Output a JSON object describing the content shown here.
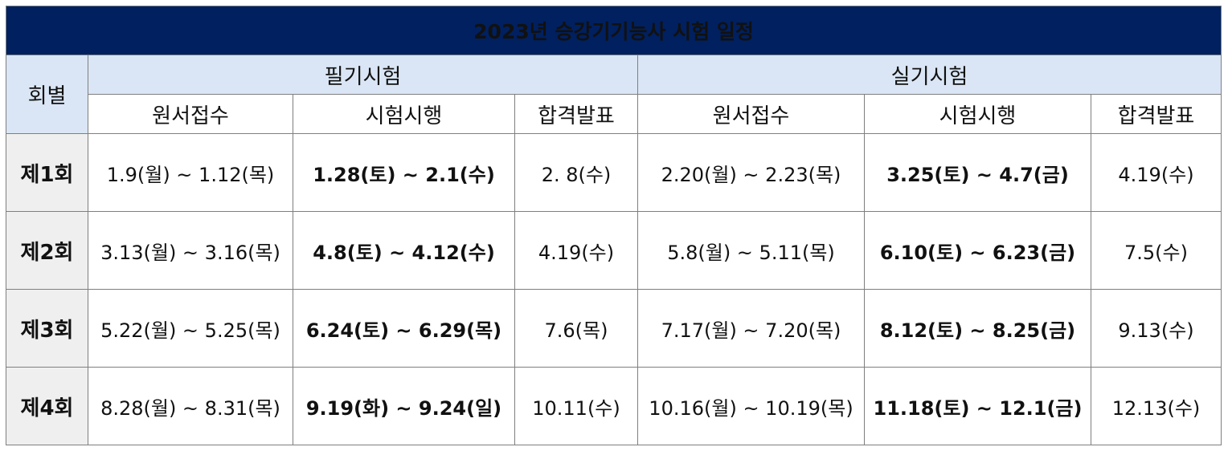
{
  "title": "2023년 승강기기능사 시험 일정",
  "headers": {
    "round": "회별",
    "written": "필기시험",
    "practical": "실기시험",
    "application": "원서접수",
    "exam": "시험시행",
    "result": "합격발표"
  },
  "colors": {
    "title_bg": "#002060",
    "header_bg": "#dae6f5",
    "exam_text": "#1e6fc0",
    "round_bg": "#efefef"
  },
  "rows": [
    {
      "round": "제1회",
      "written": {
        "application": "1.9(월)  ~  1.12(목)",
        "exam": "1.28(토)  ~  2.1(수)",
        "result": "2.  8(수)"
      },
      "practical": {
        "application": "2.20(월)  ~  2.23(목)",
        "exam": "3.25(토)  ~  4.7(금)",
        "result": "4.19(수)"
      }
    },
    {
      "round": "제2회",
      "written": {
        "application": "3.13(월)  ~  3.16(목)",
        "exam": "4.8(토)  ~  4.12(수)",
        "result": "4.19(수)"
      },
      "practical": {
        "application": "5.8(월)  ~  5.11(목)",
        "exam": "6.10(토)  ~  6.23(금)",
        "result": "7.5(수)"
      }
    },
    {
      "round": "제3회",
      "written": {
        "application": "5.22(월)  ~  5.25(목)",
        "exam": "6.24(토)  ~  6.29(목)",
        "result": "7.6(목)"
      },
      "practical": {
        "application": "7.17(월)  ~  7.20(목)",
        "exam": "8.12(토)  ~  8.25(금)",
        "result": "9.13(수)"
      }
    },
    {
      "round": "제4회",
      "written": {
        "application": "8.28(월)  ~  8.31(목)",
        "exam": "9.19(화)  ~  9.24(일)",
        "result": "10.11(수)"
      },
      "practical": {
        "application": "10.16(월)  ~  10.19(목)",
        "exam": "11.18(토)  ~  12.1(금)",
        "result": "12.13(수)"
      }
    }
  ]
}
